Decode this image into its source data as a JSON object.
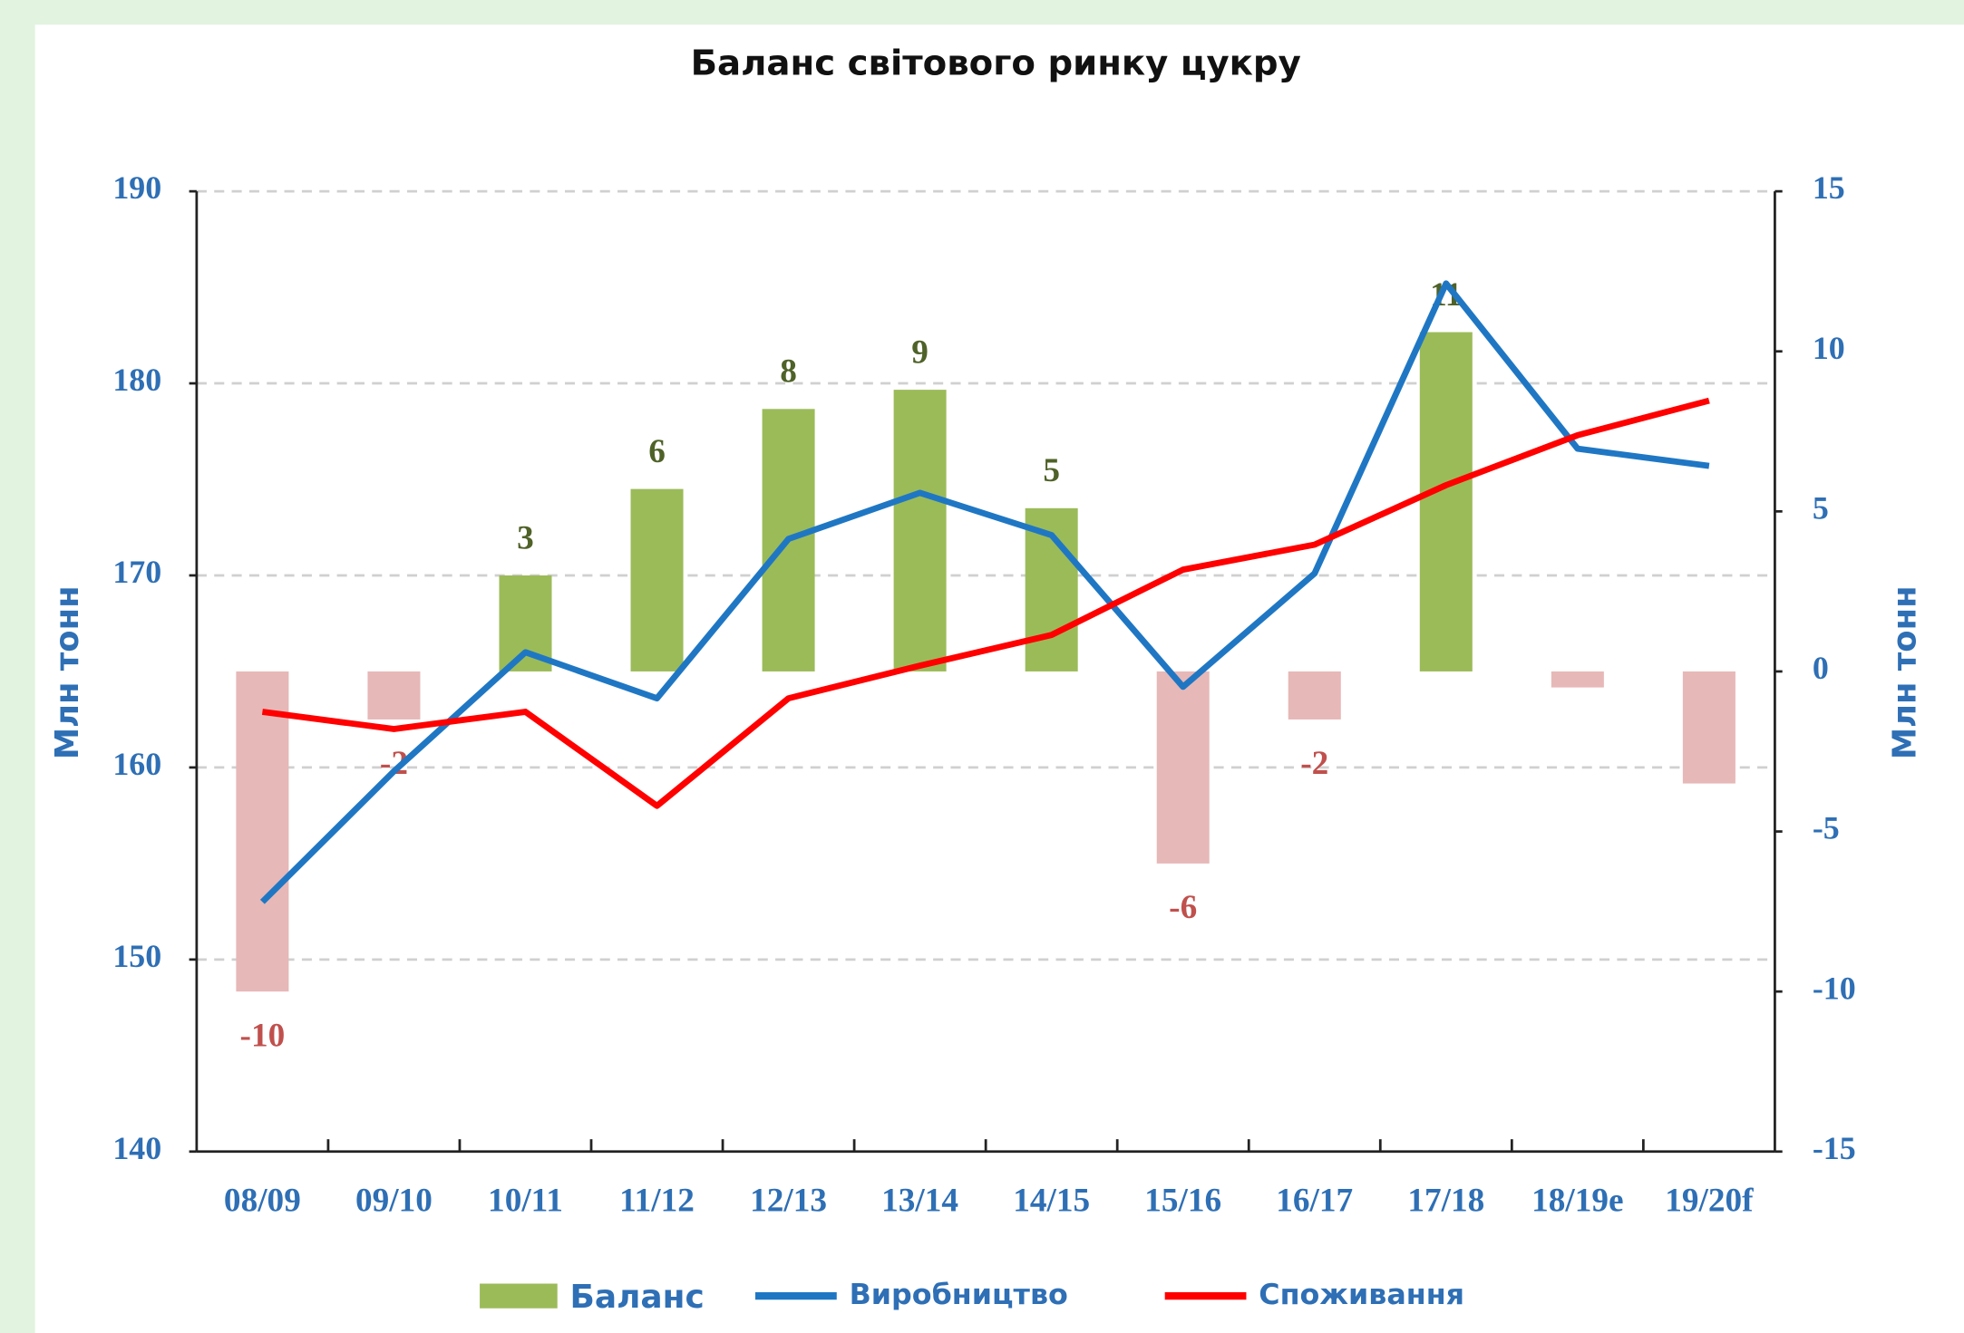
{
  "chart_data": {
    "type": "bar-line",
    "title": "Баланс світового ринку цукру",
    "ylabel": "Млн тонн",
    "y2label": "Млн тонн",
    "categories": [
      "08/09",
      "09/10",
      "10/11",
      "11/12",
      "12/13",
      "13/14",
      "14/15",
      "15/16",
      "16/17",
      "17/18",
      "18/19e",
      "19/20f"
    ],
    "series": [
      {
        "name": "Баланс",
        "type": "bar",
        "axis": "y2",
        "color": "#9bbb59",
        "negative_color": "#e6b8b7",
        "values": [
          -10,
          -1.5,
          3,
          5.7,
          8.2,
          8.8,
          5.1,
          -6,
          -1.5,
          10.6,
          -0.5,
          -3.5
        ],
        "value_labels": [
          "-10",
          "-2",
          "3",
          "6",
          "8",
          "9",
          "5",
          "-6",
          "-2",
          "11",
          null,
          null
        ]
      },
      {
        "name": "Виробництво",
        "type": "line",
        "color": "#1f77c4",
        "values": [
          153.0,
          159.8,
          166.0,
          163.6,
          171.9,
          174.3,
          172.1,
          164.2,
          170.1,
          185.2,
          176.6,
          175.7
        ]
      },
      {
        "name": "Споживання",
        "type": "line",
        "color": "#ff0000",
        "values": [
          162.9,
          162.0,
          162.9,
          158.0,
          163.6,
          165.3,
          166.9,
          170.3,
          171.6,
          174.7,
          177.3,
          179.1
        ]
      }
    ],
    "ylim": [
      140,
      190
    ],
    "yticks": [
      140,
      150,
      160,
      170,
      180,
      190
    ],
    "y2lim": [
      -15,
      15
    ],
    "y2ticks": [
      -15,
      -10,
      -5,
      0,
      5,
      10,
      15
    ],
    "grid": true,
    "legend": "bottom"
  }
}
